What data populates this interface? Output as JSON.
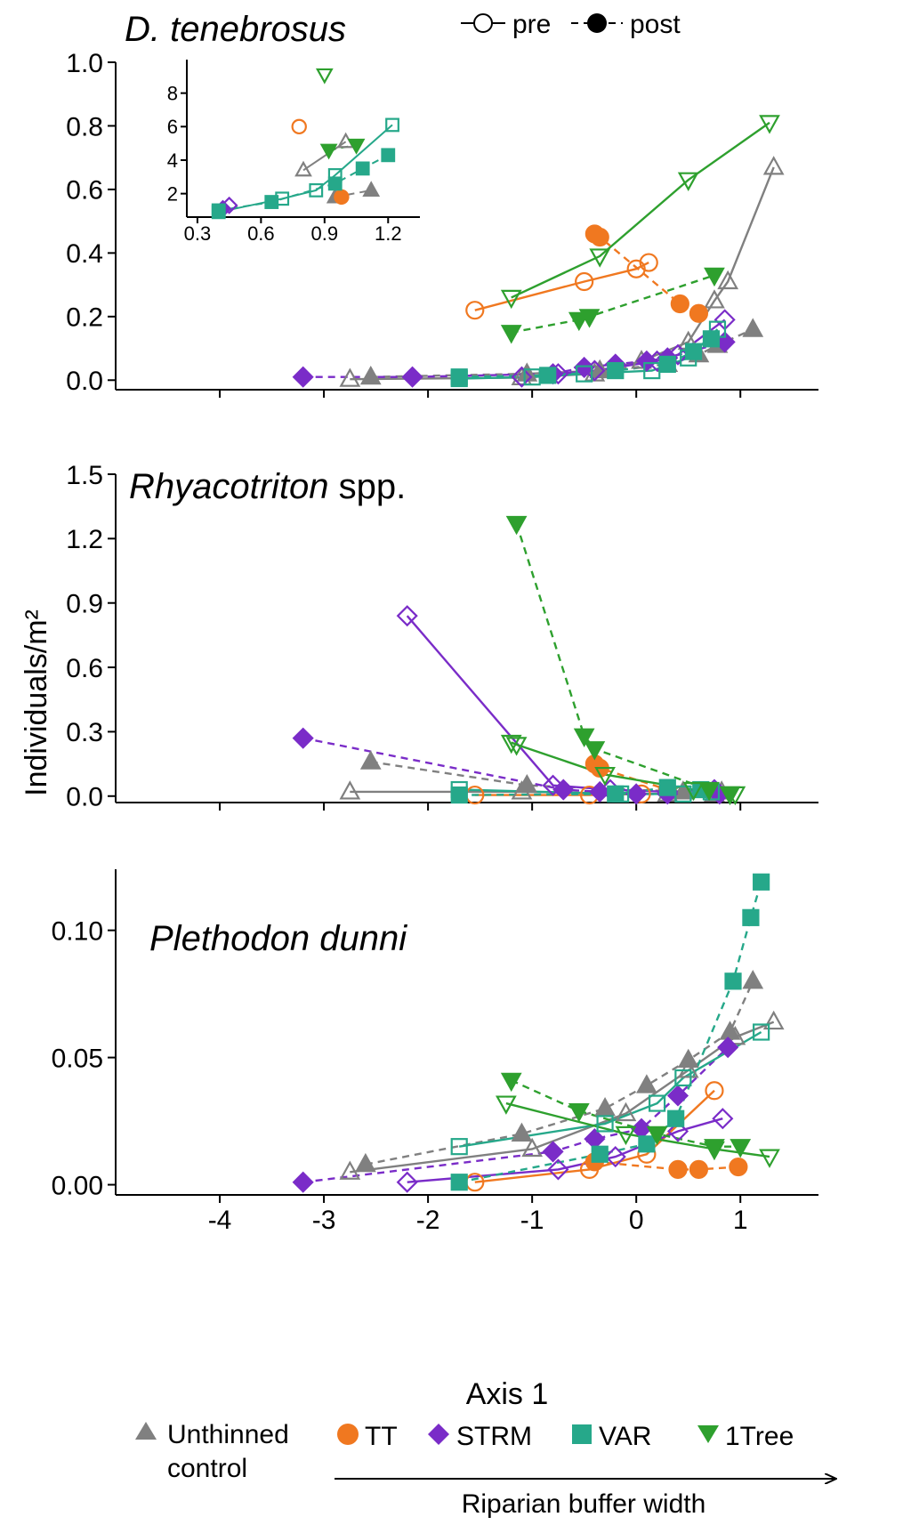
{
  "colors": {
    "ctrl": "#808080",
    "TT": "#F07820",
    "STRM": "#7A2CC8",
    "VAR": "#26A88A",
    "1Tree": "#2EA02E"
  },
  "labels": {
    "ylabel": "Individuals/m²",
    "xlabel": "Axis 1",
    "legend_pre": "pre",
    "legend_post": "post",
    "treat_ctrl_1": "Unthinned",
    "treat_ctrl_2": "control",
    "treat_TT": "TT",
    "treat_STRM": "STRM",
    "treat_VAR": "VAR",
    "treat_1Tree": "1Tree",
    "buffer": "Riparian buffer width"
  },
  "chart_data": [
    {
      "id": "p1",
      "type": "line",
      "title_italic": "D. tenebrosus",
      "title_plain": "",
      "xlim": [
        -5.0,
        1.75
      ],
      "ylim": [
        -0.03,
        1.0
      ],
      "xticks": [
        -4,
        -3,
        -2,
        -1,
        0,
        1
      ],
      "xticklabels": [
        "",
        "",
        "",
        "",
        "",
        ""
      ],
      "yticks": [
        0.0,
        0.2,
        0.4,
        0.6,
        0.8,
        1.0
      ],
      "yticklabels": [
        "0.0",
        "0.2",
        "0.4",
        "0.6",
        "0.8",
        "1.0"
      ],
      "series": [
        {
          "t": "ctrl",
          "period": "pre",
          "x": [
            -2.75,
            -1.1,
            -0.4,
            0.05,
            0.5,
            0.75,
            0.88,
            1.32
          ],
          "y": [
            0.003,
            0.008,
            0.02,
            0.06,
            0.12,
            0.25,
            0.31,
            0.67
          ]
        },
        {
          "t": "ctrl",
          "period": "post",
          "x": [
            -2.55,
            -1.05,
            -0.35,
            0.3,
            0.6,
            0.78,
            1.12
          ],
          "y": [
            0.01,
            0.02,
            0.03,
            0.05,
            0.08,
            0.11,
            0.16
          ]
        },
        {
          "t": "TT",
          "period": "pre",
          "x": [
            -1.55,
            -0.5,
            0.0,
            0.12
          ],
          "y": [
            0.22,
            0.31,
            0.35,
            0.37
          ]
        },
        {
          "t": "TT",
          "period": "post",
          "x": [
            -0.4,
            -0.35,
            0.42,
            0.6
          ],
          "y": [
            0.46,
            0.45,
            0.24,
            0.21
          ]
        },
        {
          "t": "STRM",
          "period": "pre",
          "x": [
            -1.1,
            -0.75,
            -0.4,
            0.2,
            0.4,
            0.85
          ],
          "y": [
            0.01,
            0.02,
            0.03,
            0.06,
            0.08,
            0.19
          ]
        },
        {
          "t": "STRM",
          "period": "post",
          "x": [
            -3.2,
            -2.15,
            -0.8,
            -0.5,
            -0.2,
            0.1,
            0.3,
            0.85
          ],
          "y": [
            0.01,
            0.01,
            0.02,
            0.04,
            0.05,
            0.06,
            0.07,
            0.12
          ]
        },
        {
          "t": "VAR",
          "period": "pre",
          "x": [
            -1.7,
            -1.0,
            -0.5,
            0.15,
            0.5,
            0.78
          ],
          "y": [
            0.005,
            0.01,
            0.02,
            0.03,
            0.07,
            0.16
          ]
        },
        {
          "t": "VAR",
          "period": "post",
          "x": [
            -1.7,
            -0.85,
            -0.2,
            0.3,
            0.55,
            0.72
          ],
          "y": [
            0.01,
            0.015,
            0.03,
            0.05,
            0.09,
            0.13
          ]
        },
        {
          "t": "1Tree",
          "period": "pre",
          "x": [
            -1.2,
            -0.35,
            0.5,
            1.28
          ],
          "y": [
            0.26,
            0.39,
            0.63,
            0.81
          ]
        },
        {
          "t": "1Tree",
          "period": "post",
          "x": [
            -1.2,
            -0.55,
            -0.45,
            0.75
          ],
          "y": [
            0.15,
            0.19,
            0.2,
            0.33
          ]
        }
      ]
    },
    {
      "id": "inset",
      "type": "line",
      "xlim": [
        0.25,
        1.35
      ],
      "ylim": [
        0.6,
        10.0
      ],
      "xticks": [
        0.3,
        0.6,
        0.9,
        1.2
      ],
      "xticklabels": [
        "0.3",
        "0.6",
        "0.9",
        "1.2"
      ],
      "yticks": [
        2,
        4,
        6,
        8
      ],
      "yticklabels": [
        "2",
        "4",
        "6",
        "8"
      ],
      "series": [
        {
          "t": "ctrl",
          "period": "pre",
          "x": [
            0.8,
            1.0
          ],
          "y": [
            3.4,
            5.1
          ]
        },
        {
          "t": "ctrl",
          "period": "post",
          "x": [
            0.95,
            1.12
          ],
          "y": [
            1.8,
            2.2
          ]
        },
        {
          "t": "TT",
          "period": "pre",
          "x": [
            0.78
          ],
          "y": [
            6.0
          ]
        },
        {
          "t": "TT",
          "period": "post",
          "x": [
            0.98
          ],
          "y": [
            1.8
          ]
        },
        {
          "t": "STRM",
          "period": "pre",
          "x": [
            0.45
          ],
          "y": [
            1.3
          ]
        },
        {
          "t": "STRM",
          "period": "post",
          "x": [
            0.42
          ],
          "y": [
            1.1
          ]
        },
        {
          "t": "VAR",
          "period": "pre",
          "x": [
            0.4,
            0.7,
            0.86,
            0.95,
            1.22
          ],
          "y": [
            0.9,
            1.7,
            2.2,
            3.1,
            6.1
          ]
        },
        {
          "t": "VAR",
          "period": "post",
          "x": [
            0.4,
            0.65,
            0.95,
            1.08,
            1.2
          ],
          "y": [
            1.0,
            1.5,
            2.6,
            3.5,
            4.3
          ]
        },
        {
          "t": "1Tree",
          "period": "pre",
          "x": [
            0.9
          ],
          "y": [
            9.1
          ]
        },
        {
          "t": "1Tree",
          "period": "post",
          "x": [
            0.92,
            1.05
          ],
          "y": [
            4.6,
            4.9
          ]
        }
      ]
    },
    {
      "id": "p2",
      "type": "line",
      "title_italic": "Rhyacotriton",
      "title_plain": " spp.",
      "xlim": [
        -5.0,
        1.75
      ],
      "ylim": [
        -0.03,
        1.5
      ],
      "xticks": [
        -4,
        -3,
        -2,
        -1,
        0,
        1
      ],
      "xticklabels": [
        "",
        "",
        "",
        "",
        "",
        ""
      ],
      "yticks": [
        0.0,
        0.3,
        0.6,
        0.9,
        1.2,
        1.5
      ],
      "yticklabels": [
        "0.0",
        "0.3",
        "0.6",
        "0.9",
        "1.2",
        "1.5"
      ],
      "series": [
        {
          "t": "ctrl",
          "period": "pre",
          "x": [
            -2.75,
            -1.1,
            0.3,
            0.82
          ],
          "y": [
            0.02,
            0.02,
            0.01,
            0.02
          ]
        },
        {
          "t": "ctrl",
          "period": "post",
          "x": [
            -2.55,
            -1.05,
            0.45,
            0.75
          ],
          "y": [
            0.16,
            0.05,
            0.02,
            0.01
          ]
        },
        {
          "t": "TT",
          "period": "pre",
          "x": [
            -1.55,
            -0.45,
            0.05
          ],
          "y": [
            0.005,
            0.005,
            0.01
          ]
        },
        {
          "t": "TT",
          "period": "post",
          "x": [
            -0.4,
            -0.35,
            0.3
          ],
          "y": [
            0.15,
            0.13,
            0.03
          ]
        },
        {
          "t": "STRM",
          "period": "pre",
          "x": [
            -2.2,
            -0.8,
            -0.25,
            0.3,
            0.75
          ],
          "y": [
            0.84,
            0.05,
            0.03,
            0.02,
            0.03
          ]
        },
        {
          "t": "STRM",
          "period": "post",
          "x": [
            -3.2,
            -0.7,
            -0.35,
            0.0,
            0.3,
            0.8
          ],
          "y": [
            0.27,
            0.03,
            0.02,
            0.01,
            0.01,
            0.01
          ]
        },
        {
          "t": "VAR",
          "period": "pre",
          "x": [
            -1.7,
            -0.15,
            0.45,
            0.72
          ],
          "y": [
            0.03,
            0.01,
            0.01,
            0.02
          ]
        },
        {
          "t": "VAR",
          "period": "post",
          "x": [
            -1.7,
            -0.2,
            0.3,
            0.62
          ],
          "y": [
            0.005,
            0.01,
            0.04,
            0.03
          ]
        },
        {
          "t": "1Tree",
          "period": "pre",
          "x": [
            -1.2,
            -1.15,
            -0.3,
            0.55,
            0.95
          ],
          "y": [
            0.25,
            0.24,
            0.1,
            0.03,
            0.01
          ]
        },
        {
          "t": "1Tree",
          "period": "post",
          "x": [
            -1.15,
            -0.5,
            -0.4,
            0.7,
            0.9
          ],
          "y": [
            1.27,
            0.28,
            0.22,
            0.03,
            0.01
          ]
        }
      ]
    },
    {
      "id": "p3",
      "type": "line",
      "title_italic": "Plethodon dunni",
      "title_plain": "",
      "xlim": [
        -5.0,
        1.75
      ],
      "ylim": [
        -0.004,
        0.124
      ],
      "xticks": [
        -4,
        -3,
        -2,
        -1,
        0,
        1
      ],
      "xticklabels": [
        "-4",
        "-3",
        "-2",
        "-1",
        "0",
        "1"
      ],
      "yticks": [
        0.0,
        0.05,
        0.1
      ],
      "yticklabels": [
        "0.00",
        "0.05",
        "0.10"
      ],
      "series": [
        {
          "t": "ctrl",
          "period": "pre",
          "x": [
            -2.75,
            -1.0,
            -0.1,
            0.5,
            0.95,
            1.32
          ],
          "y": [
            0.005,
            0.014,
            0.028,
            0.045,
            0.058,
            0.064
          ]
        },
        {
          "t": "ctrl",
          "period": "post",
          "x": [
            -2.6,
            -1.1,
            -0.3,
            0.1,
            0.5,
            0.9,
            1.12
          ],
          "y": [
            0.008,
            0.02,
            0.03,
            0.039,
            0.049,
            0.06,
            0.08
          ]
        },
        {
          "t": "TT",
          "period": "pre",
          "x": [
            -1.55,
            -0.45,
            0.1,
            0.75
          ],
          "y": [
            0.001,
            0.006,
            0.012,
            0.037
          ]
        },
        {
          "t": "TT",
          "period": "post",
          "x": [
            -0.4,
            0.4,
            0.6,
            0.98
          ],
          "y": [
            0.009,
            0.006,
            0.006,
            0.007
          ]
        },
        {
          "t": "STRM",
          "period": "pre",
          "x": [
            -2.2,
            -0.75,
            -0.2,
            0.4,
            0.83
          ],
          "y": [
            0.001,
            0.006,
            0.011,
            0.021,
            0.026
          ]
        },
        {
          "t": "STRM",
          "period": "post",
          "x": [
            -3.2,
            -0.8,
            -0.4,
            0.05,
            0.4,
            0.88
          ],
          "y": [
            0.001,
            0.013,
            0.018,
            0.022,
            0.035,
            0.054
          ]
        },
        {
          "t": "VAR",
          "period": "pre",
          "x": [
            -1.7,
            -0.3,
            0.2,
            0.45,
            1.2
          ],
          "y": [
            0.015,
            0.024,
            0.032,
            0.042,
            0.06
          ]
        },
        {
          "t": "VAR",
          "period": "post",
          "x": [
            -1.7,
            -0.35,
            0.1,
            0.38,
            0.93,
            1.1,
            1.2
          ],
          "y": [
            0.001,
            0.012,
            0.016,
            0.026,
            0.08,
            0.105,
            0.119
          ]
        },
        {
          "t": "1Tree",
          "period": "pre",
          "x": [
            -1.25,
            -0.1,
            0.75,
            1.28
          ],
          "y": [
            0.032,
            0.02,
            0.014,
            0.011
          ]
        },
        {
          "t": "1Tree",
          "period": "post",
          "x": [
            -1.2,
            -0.55,
            0.2,
            0.75,
            1.0
          ],
          "y": [
            0.041,
            0.029,
            0.02,
            0.015,
            0.015
          ]
        }
      ]
    }
  ]
}
